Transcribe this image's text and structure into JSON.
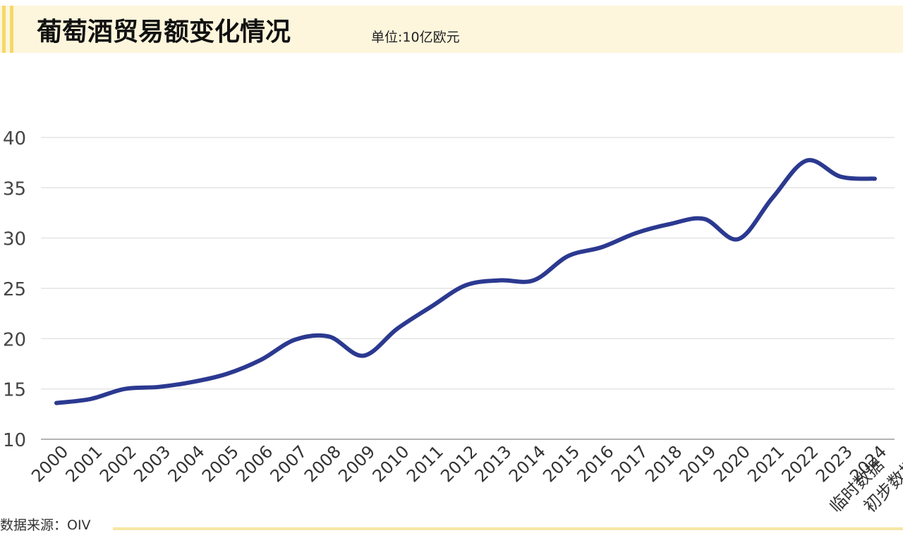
{
  "chart_data": {
    "type": "line",
    "title": "葡萄酒贸易额变化情况",
    "subtitle": "单位:10亿欧元",
    "source": "数据来源：OIV",
    "categories": [
      [
        "2000"
      ],
      [
        "2001"
      ],
      [
        "2002"
      ],
      [
        "2003"
      ],
      [
        "2004"
      ],
      [
        "2005"
      ],
      [
        "2006"
      ],
      [
        "2007"
      ],
      [
        "2008"
      ],
      [
        "2009"
      ],
      [
        "2010"
      ],
      [
        "2011"
      ],
      [
        "2012"
      ],
      [
        "2013"
      ],
      [
        "2014"
      ],
      [
        "2015"
      ],
      [
        "2016"
      ],
      [
        "2017"
      ],
      [
        "2018"
      ],
      [
        "2019"
      ],
      [
        "2020"
      ],
      [
        "2021"
      ],
      [
        "2022"
      ],
      [
        "2023",
        "临时数据"
      ],
      [
        "2024",
        "初步数据"
      ]
    ],
    "series": [
      {
        "color": "#2b3990",
        "values": [
          13.6,
          14.0,
          15.0,
          15.2,
          15.7,
          16.5,
          17.9,
          19.9,
          20.2,
          18.3,
          21.0,
          23.2,
          25.3,
          25.8,
          25.8,
          28.2,
          29.1,
          30.5,
          31.4,
          31.9,
          29.9,
          34.0,
          37.7,
          36.1,
          35.9
        ]
      }
    ],
    "ylim": [
      10,
      40
    ],
    "yticks": [
      10,
      15,
      20,
      25,
      30,
      35,
      40
    ],
    "grid": true
  }
}
